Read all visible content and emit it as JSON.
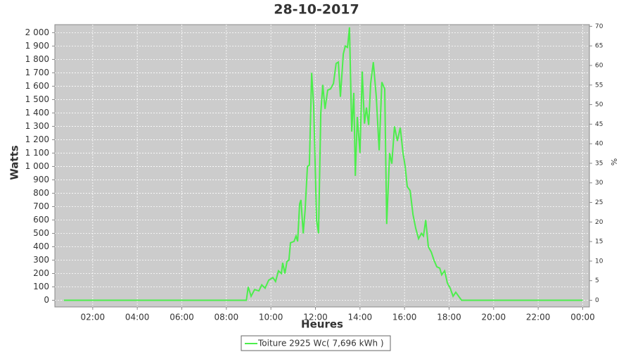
{
  "chart_data": {
    "type": "line",
    "title": "28-10-2017",
    "xlabel": "Heures",
    "ylabel": "Watts",
    "y2label": "%",
    "x": [
      0.7,
      8.0,
      8.9,
      8.98,
      9.11,
      9.27,
      9.46,
      9.59,
      9.74,
      9.9,
      10.09,
      10.21,
      10.34,
      10.47,
      10.53,
      10.63,
      10.72,
      10.81,
      10.88,
      11.04,
      11.13,
      11.2,
      11.29,
      11.35,
      11.45,
      11.54,
      11.64,
      11.73,
      11.83,
      11.92,
      12.05,
      12.14,
      12.24,
      12.33,
      12.43,
      12.55,
      12.68,
      12.81,
      12.93,
      13.03,
      13.12,
      13.25,
      13.34,
      13.44,
      13.53,
      13.63,
      13.72,
      13.79,
      13.88,
      14.0,
      14.1,
      14.2,
      14.29,
      14.39,
      14.48,
      14.6,
      14.73,
      14.86,
      14.98,
      15.11,
      15.2,
      15.33,
      15.43,
      15.55,
      15.68,
      15.81,
      15.93,
      16.03,
      16.12,
      16.25,
      16.38,
      16.5,
      16.63,
      16.76,
      16.85,
      16.95,
      17.07,
      17.2,
      17.32,
      17.45,
      17.58,
      17.67,
      17.8,
      17.92,
      18.05,
      18.18,
      18.3,
      18.43,
      18.56,
      24.0
    ],
    "series": [
      {
        "name": "Toiture 2925 Wc( 7,696 kWh )",
        "color": "#4cee4c",
        "values": [
          0,
          0,
          0,
          100,
          30,
          80,
          70,
          115,
          90,
          150,
          170,
          140,
          220,
          200,
          280,
          200,
          290,
          300,
          430,
          440,
          480,
          440,
          720,
          750,
          500,
          680,
          1000,
          1010,
          1700,
          1450,
          600,
          500,
          1400,
          1610,
          1430,
          1570,
          1580,
          1620,
          1770,
          1780,
          1520,
          1840,
          1900,
          1890,
          2040,
          1260,
          1550,
          930,
          1370,
          1100,
          1710,
          1320,
          1440,
          1310,
          1620,
          1780,
          1520,
          1120,
          1630,
          1580,
          570,
          1100,
          1020,
          1300,
          1190,
          1290,
          1100,
          1000,
          850,
          820,
          640,
          540,
          460,
          500,
          480,
          600,
          400,
          360,
          300,
          250,
          240,
          190,
          220,
          130,
          90,
          30,
          60,
          30,
          0,
          0
        ]
      }
    ],
    "xlim": [
      0.3,
      24.3
    ],
    "xticks": [
      {
        "value": 2,
        "label": "02:00"
      },
      {
        "value": 4,
        "label": "04:00"
      },
      {
        "value": 6,
        "label": "06:00"
      },
      {
        "value": 8,
        "label": "08:00"
      },
      {
        "value": 10,
        "label": "10:00"
      },
      {
        "value": 12,
        "label": "12:00"
      },
      {
        "value": 14,
        "label": "14:00"
      },
      {
        "value": 16,
        "label": "16:00"
      },
      {
        "value": 18,
        "label": "18:00"
      },
      {
        "value": 20,
        "label": "20:00"
      },
      {
        "value": 22,
        "label": "22:00"
      },
      {
        "value": 24,
        "label": "00:00"
      }
    ],
    "ylim": [
      -50,
      2060
    ],
    "yticks": [
      0,
      100,
      200,
      300,
      400,
      500,
      600,
      700,
      800,
      900,
      {
        "value": 1000,
        "label": "1 000"
      },
      {
        "value": 1100,
        "label": "1 100"
      },
      {
        "value": 1200,
        "label": "1 200"
      },
      {
        "value": 1300,
        "label": "1 300"
      },
      {
        "value": 1400,
        "label": "1 400"
      },
      {
        "value": 1500,
        "label": "1 500"
      },
      {
        "value": 1600,
        "label": "1 600"
      },
      {
        "value": 1700,
        "label": "1 700"
      },
      {
        "value": 1800,
        "label": "1 800"
      },
      {
        "value": 1900,
        "label": "1 900"
      },
      {
        "value": 2000,
        "label": "2 000"
      }
    ],
    "y2lim": [
      -1.71,
      70.43
    ],
    "y2ticks": [
      0,
      5,
      10,
      15,
      20,
      25,
      30,
      35,
      40,
      45,
      50,
      55,
      60,
      65,
      70
    ],
    "grid": true
  }
}
